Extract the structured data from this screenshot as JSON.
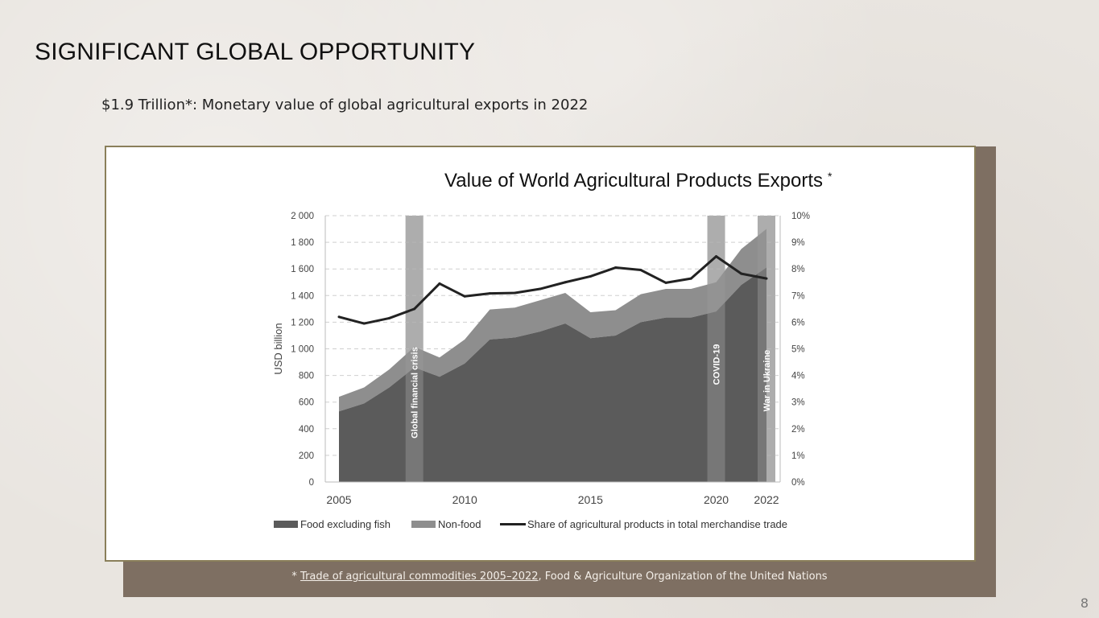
{
  "slide": {
    "title": "SIGNIFICANT GLOBAL OPPORTUNITY",
    "subtitle": "$1.9 Trillion*: Monetary value of global agricultural exports in 2022",
    "source_prefix": "* ",
    "source_link": "Trade of agricultural commodities 2005–2022",
    "source_suffix": ", Food & Agriculture Organization of the United Nations",
    "page_number": "8"
  },
  "colors": {
    "food": "#5b5b5b",
    "nonfood": "#8e8e8e",
    "share_line": "#222222",
    "event_band": "#bdbdbd",
    "shadow": "#7e6f62"
  },
  "chart_data": {
    "type": "area",
    "title": "Value of World  Agricultural Products Exports",
    "title_mark": "*",
    "ylabel": "USD billion",
    "ylim": [
      0,
      2000
    ],
    "y2lim": [
      0,
      10
    ],
    "yticks": [
      "0",
      "200",
      "400",
      "600",
      "800",
      "1 000",
      "1 200",
      "1 400",
      "1 600",
      "1 800",
      "2 000"
    ],
    "y2ticks": [
      "0%",
      "1%",
      "2%",
      "3%",
      "4%",
      "5%",
      "6%",
      "7%",
      "8%",
      "9%",
      "10%"
    ],
    "xticks": [
      "2005",
      "2010",
      "2015",
      "2020",
      "2022"
    ],
    "x": [
      2005,
      2006,
      2007,
      2008,
      2009,
      2010,
      2011,
      2012,
      2013,
      2014,
      2015,
      2016,
      2017,
      2018,
      2019,
      2020,
      2021,
      2022
    ],
    "series": [
      {
        "name": "Food excluding fish",
        "values": [
          530,
          590,
          710,
          860,
          790,
          890,
          1070,
          1085,
          1130,
          1190,
          1080,
          1100,
          1200,
          1235,
          1235,
          1280,
          1480,
          1610
        ]
      },
      {
        "name": "Non-food",
        "values": [
          110,
          120,
          135,
          155,
          145,
          180,
          225,
          225,
          235,
          230,
          195,
          190,
          210,
          215,
          215,
          220,
          270,
          290
        ]
      },
      {
        "name": "Share of agricultural products in total merchandise trade",
        "values": [
          6.2,
          5.95,
          6.15,
          6.5,
          7.45,
          6.97,
          7.08,
          7.1,
          7.25,
          7.5,
          7.72,
          8.05,
          7.96,
          7.48,
          7.64,
          8.47,
          7.82,
          7.64
        ]
      }
    ],
    "events": [
      {
        "label": "Global financial crisis",
        "x": 2008
      },
      {
        "label": "COVID-19",
        "x": 2020
      },
      {
        "label": "War in Ukraine",
        "x": 2022
      }
    ],
    "legend_position": "bottom",
    "grid": true
  }
}
